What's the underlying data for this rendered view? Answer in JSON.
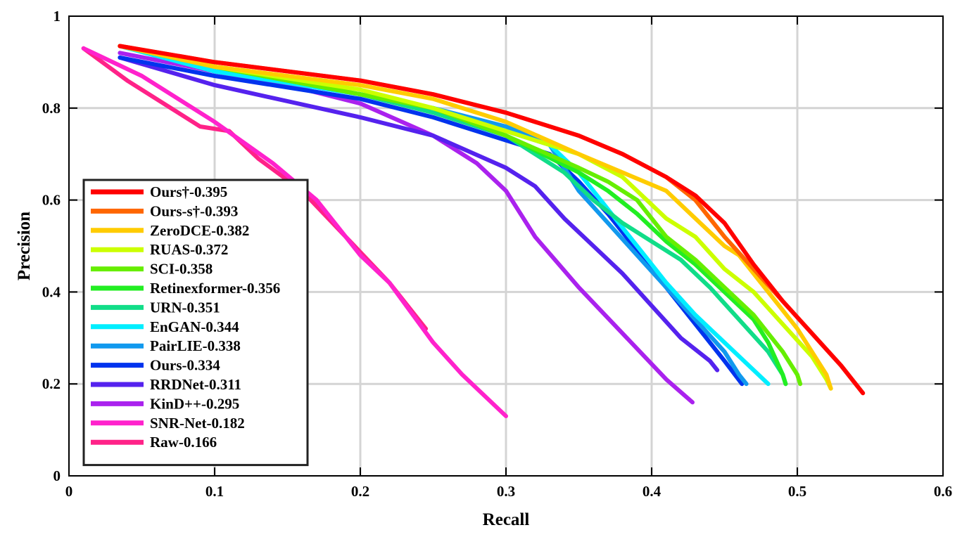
{
  "chart_data": {
    "type": "line",
    "xlabel": "Recall",
    "ylabel": "Precision",
    "xlim": [
      0,
      0.6
    ],
    "ylim": [
      0,
      1
    ],
    "xticks": [
      "0",
      "0.1",
      "0.2",
      "0.3",
      "0.4",
      "0.5",
      "0.6"
    ],
    "yticks": [
      "0",
      "0.2",
      "0.4",
      "0.6",
      "0.8",
      "1"
    ],
    "grid": true,
    "legend_position": "bottom-left",
    "series": [
      {
        "name": "Ours†-0.395",
        "color": "#ff0000",
        "x": [
          0.035,
          0.1,
          0.2,
          0.25,
          0.3,
          0.35,
          0.38,
          0.41,
          0.43,
          0.45,
          0.47,
          0.49,
          0.51,
          0.53,
          0.545
        ],
        "y": [
          0.935,
          0.9,
          0.86,
          0.83,
          0.79,
          0.74,
          0.7,
          0.65,
          0.61,
          0.55,
          0.46,
          0.38,
          0.31,
          0.24,
          0.18
        ]
      },
      {
        "name": "Ours-s†-0.393",
        "color": "#ff6600",
        "x": [
          0.035,
          0.1,
          0.2,
          0.25,
          0.3,
          0.35,
          0.38,
          0.41,
          0.43,
          0.45,
          0.47,
          0.49,
          0.51,
          0.53,
          0.545
        ],
        "y": [
          0.935,
          0.9,
          0.86,
          0.83,
          0.79,
          0.74,
          0.7,
          0.65,
          0.6,
          0.52,
          0.45,
          0.38,
          0.31,
          0.24,
          0.18
        ]
      },
      {
        "name": "ZeroDCE-0.382",
        "color": "#ffcc00",
        "x": [
          0.035,
          0.1,
          0.2,
          0.25,
          0.3,
          0.35,
          0.38,
          0.41,
          0.43,
          0.45,
          0.46,
          0.48,
          0.5,
          0.52,
          0.523
        ],
        "y": [
          0.935,
          0.89,
          0.85,
          0.82,
          0.77,
          0.7,
          0.66,
          0.62,
          0.56,
          0.5,
          0.48,
          0.4,
          0.32,
          0.22,
          0.19
        ]
      },
      {
        "name": "RUAS-0.372",
        "color": "#ccff00",
        "x": [
          0.035,
          0.1,
          0.2,
          0.25,
          0.3,
          0.35,
          0.38,
          0.41,
          0.43,
          0.45,
          0.47,
          0.49,
          0.51,
          0.52,
          0.523
        ],
        "y": [
          0.935,
          0.89,
          0.84,
          0.8,
          0.75,
          0.7,
          0.65,
          0.56,
          0.52,
          0.45,
          0.4,
          0.33,
          0.26,
          0.21,
          0.19
        ]
      },
      {
        "name": "SCI-0.358",
        "color": "#66ee00",
        "x": [
          0.035,
          0.1,
          0.2,
          0.25,
          0.3,
          0.35,
          0.37,
          0.39,
          0.41,
          0.43,
          0.45,
          0.47,
          0.49,
          0.5,
          0.502
        ],
        "y": [
          0.935,
          0.89,
          0.83,
          0.8,
          0.74,
          0.67,
          0.64,
          0.6,
          0.52,
          0.47,
          0.41,
          0.35,
          0.27,
          0.22,
          0.2
        ]
      },
      {
        "name": "Retinexformer-0.356",
        "color": "#22ee22",
        "x": [
          0.035,
          0.1,
          0.2,
          0.25,
          0.3,
          0.35,
          0.37,
          0.39,
          0.41,
          0.43,
          0.45,
          0.47,
          0.48,
          0.49,
          0.492
        ],
        "y": [
          0.935,
          0.89,
          0.83,
          0.8,
          0.74,
          0.66,
          0.62,
          0.57,
          0.51,
          0.46,
          0.4,
          0.34,
          0.29,
          0.22,
          0.2
        ]
      },
      {
        "name": "URN-0.351",
        "color": "#11dd88",
        "x": [
          0.035,
          0.1,
          0.2,
          0.25,
          0.3,
          0.34,
          0.36,
          0.38,
          0.4,
          0.42,
          0.44,
          0.46,
          0.48,
          0.49,
          0.492
        ],
        "y": [
          0.935,
          0.89,
          0.83,
          0.79,
          0.74,
          0.66,
          0.6,
          0.55,
          0.51,
          0.47,
          0.41,
          0.34,
          0.27,
          0.22,
          0.2
        ]
      },
      {
        "name": "EnGAN-0.344",
        "color": "#00eeff",
        "x": [
          0.035,
          0.1,
          0.2,
          0.25,
          0.3,
          0.33,
          0.35,
          0.37,
          0.39,
          0.41,
          0.43,
          0.45,
          0.47,
          0.48
        ],
        "y": [
          0.935,
          0.88,
          0.83,
          0.8,
          0.75,
          0.72,
          0.66,
          0.58,
          0.5,
          0.42,
          0.35,
          0.29,
          0.23,
          0.2
        ]
      },
      {
        "name": "PairLIE-0.338",
        "color": "#1199ee",
        "x": [
          0.035,
          0.1,
          0.2,
          0.25,
          0.3,
          0.33,
          0.35,
          0.37,
          0.39,
          0.41,
          0.43,
          0.45,
          0.46,
          0.465
        ],
        "y": [
          0.935,
          0.88,
          0.83,
          0.8,
          0.76,
          0.72,
          0.62,
          0.55,
          0.48,
          0.41,
          0.34,
          0.27,
          0.22,
          0.2
        ]
      },
      {
        "name": "Ours-0.334",
        "color": "#0033ee",
        "x": [
          0.035,
          0.1,
          0.2,
          0.25,
          0.3,
          0.33,
          0.35,
          0.37,
          0.39,
          0.41,
          0.43,
          0.45,
          0.462
        ],
        "y": [
          0.91,
          0.87,
          0.82,
          0.78,
          0.73,
          0.7,
          0.64,
          0.57,
          0.49,
          0.41,
          0.33,
          0.25,
          0.2
        ]
      },
      {
        "name": "RRDNet-0.311",
        "color": "#5522ee",
        "x": [
          0.035,
          0.1,
          0.2,
          0.25,
          0.3,
          0.32,
          0.34,
          0.36,
          0.38,
          0.4,
          0.42,
          0.44,
          0.445
        ],
        "y": [
          0.91,
          0.85,
          0.78,
          0.74,
          0.67,
          0.63,
          0.56,
          0.5,
          0.44,
          0.37,
          0.3,
          0.25,
          0.23
        ]
      },
      {
        "name": "KinD++-0.295",
        "color": "#aa22ee",
        "x": [
          0.035,
          0.1,
          0.15,
          0.2,
          0.25,
          0.28,
          0.3,
          0.32,
          0.35,
          0.38,
          0.41,
          0.428
        ],
        "y": [
          0.92,
          0.88,
          0.85,
          0.81,
          0.74,
          0.68,
          0.62,
          0.52,
          0.41,
          0.31,
          0.21,
          0.16
        ]
      },
      {
        "name": "SNR-Net-0.182",
        "color": "#ff22cc",
        "x": [
          0.01,
          0.05,
          0.1,
          0.14,
          0.17,
          0.2,
          0.22,
          0.25,
          0.27,
          0.3
        ],
        "y": [
          0.93,
          0.87,
          0.77,
          0.68,
          0.6,
          0.48,
          0.42,
          0.29,
          0.22,
          0.13
        ]
      },
      {
        "name": "Raw-0.166",
        "color": "#ff2288",
        "x": [
          0.01,
          0.04,
          0.07,
          0.09,
          0.11,
          0.13,
          0.16,
          0.19,
          0.22,
          0.245
        ],
        "y": [
          0.93,
          0.86,
          0.8,
          0.76,
          0.75,
          0.69,
          0.62,
          0.52,
          0.42,
          0.32
        ]
      }
    ]
  }
}
